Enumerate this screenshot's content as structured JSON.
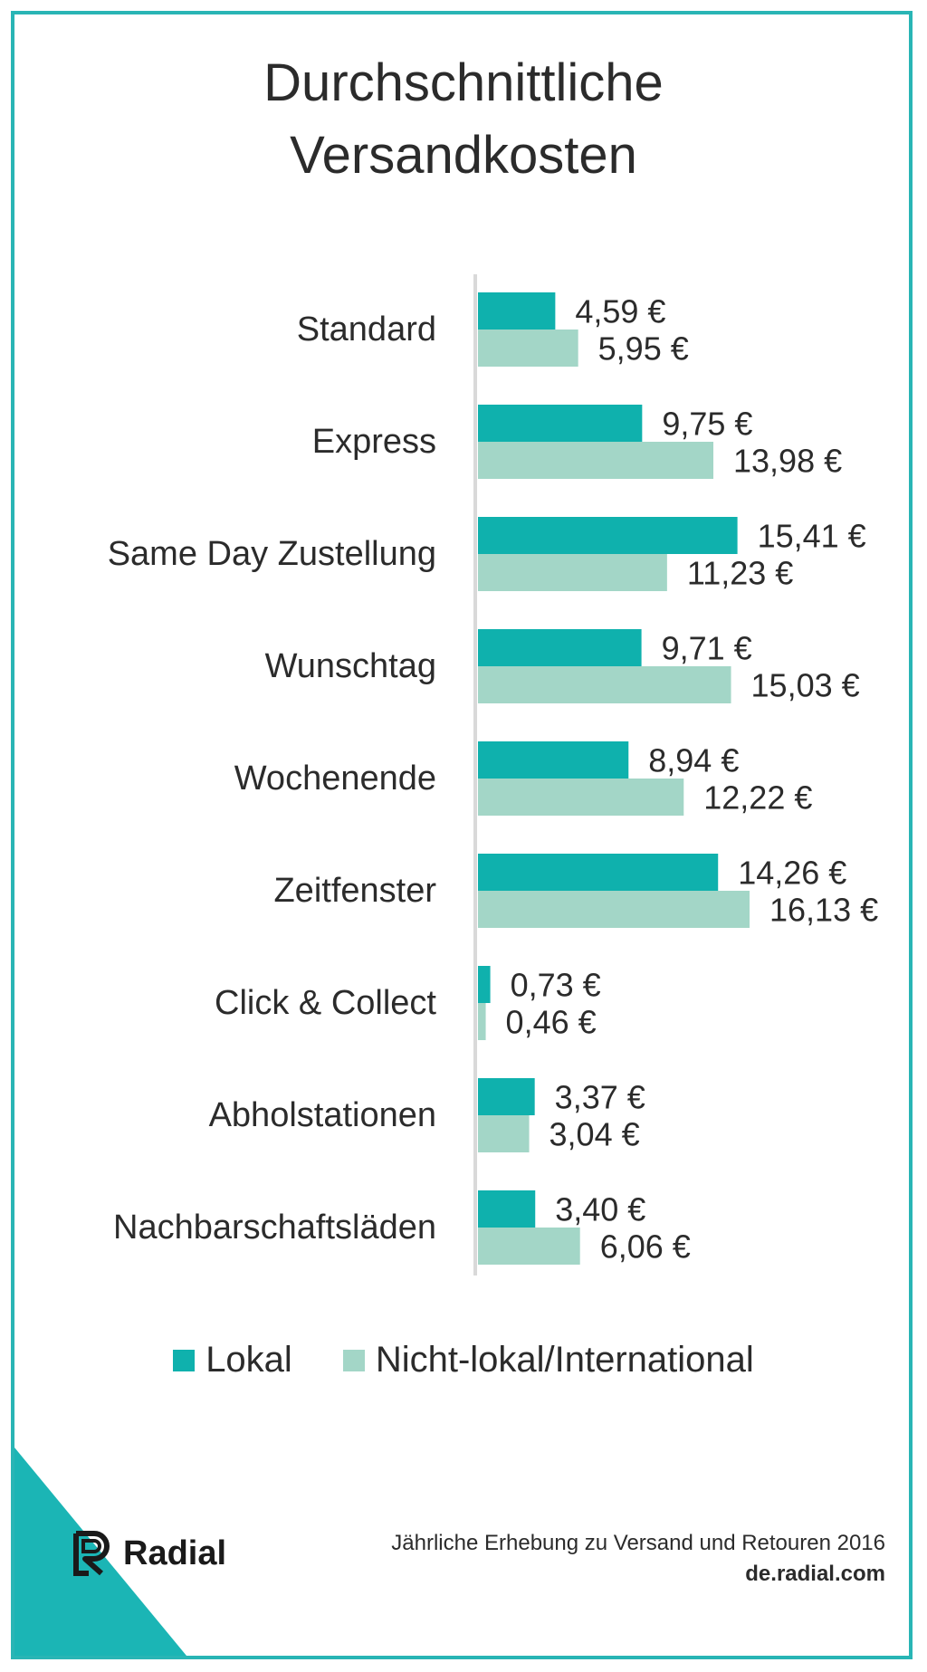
{
  "title_lines": [
    "Durchschnittliche",
    "Versandkosten"
  ],
  "colors": {
    "frame": "#29b5b5",
    "lokal": "#0fb1ad",
    "international": "#a3d6c7",
    "axis": "#d9d9d9"
  },
  "legend": {
    "lokal": "Lokal",
    "international": "Nicht-lokal/International"
  },
  "logo": {
    "text": "Radial",
    "icon": "radial-r-logo-icon"
  },
  "footer": {
    "line1": "Jährliche Erhebung zu Versand und Retouren 2016",
    "line2": "de.radial.com"
  },
  "chart_data": {
    "type": "bar",
    "orientation": "horizontal",
    "title": "Durchschnittliche Versandkosten",
    "categories": [
      "Standard",
      "Express",
      "Same Day Zustellung",
      "Wunschtag",
      "Wochenende",
      "Zeitfenster",
      "Click & Collect",
      "Abholstationen",
      "Nachbarschaftsläden"
    ],
    "series": [
      {
        "name": "Lokal",
        "values": [
          4.59,
          9.75,
          15.41,
          9.71,
          8.94,
          14.26,
          0.73,
          3.37,
          3.4
        ],
        "labels": [
          "4,59 €",
          "9,75 €",
          "15,41 €",
          "9,71 €",
          "8,94 €",
          "14,26 €",
          "0,73 €",
          "3,37 €",
          "3,40 €"
        ]
      },
      {
        "name": "Nicht-lokal/International",
        "values": [
          5.95,
          13.98,
          11.23,
          15.03,
          12.22,
          16.13,
          0.46,
          3.04,
          6.06
        ],
        "labels": [
          "5,95 €",
          "13,98 €",
          "11,23 €",
          "15,03 €",
          "12,22 €",
          "16,13 €",
          "0,46 €",
          "3,04 €",
          "6,06 €"
        ]
      }
    ],
    "xlim": [
      0,
      16.13
    ],
    "grid": false,
    "legend_position": "bottom"
  }
}
